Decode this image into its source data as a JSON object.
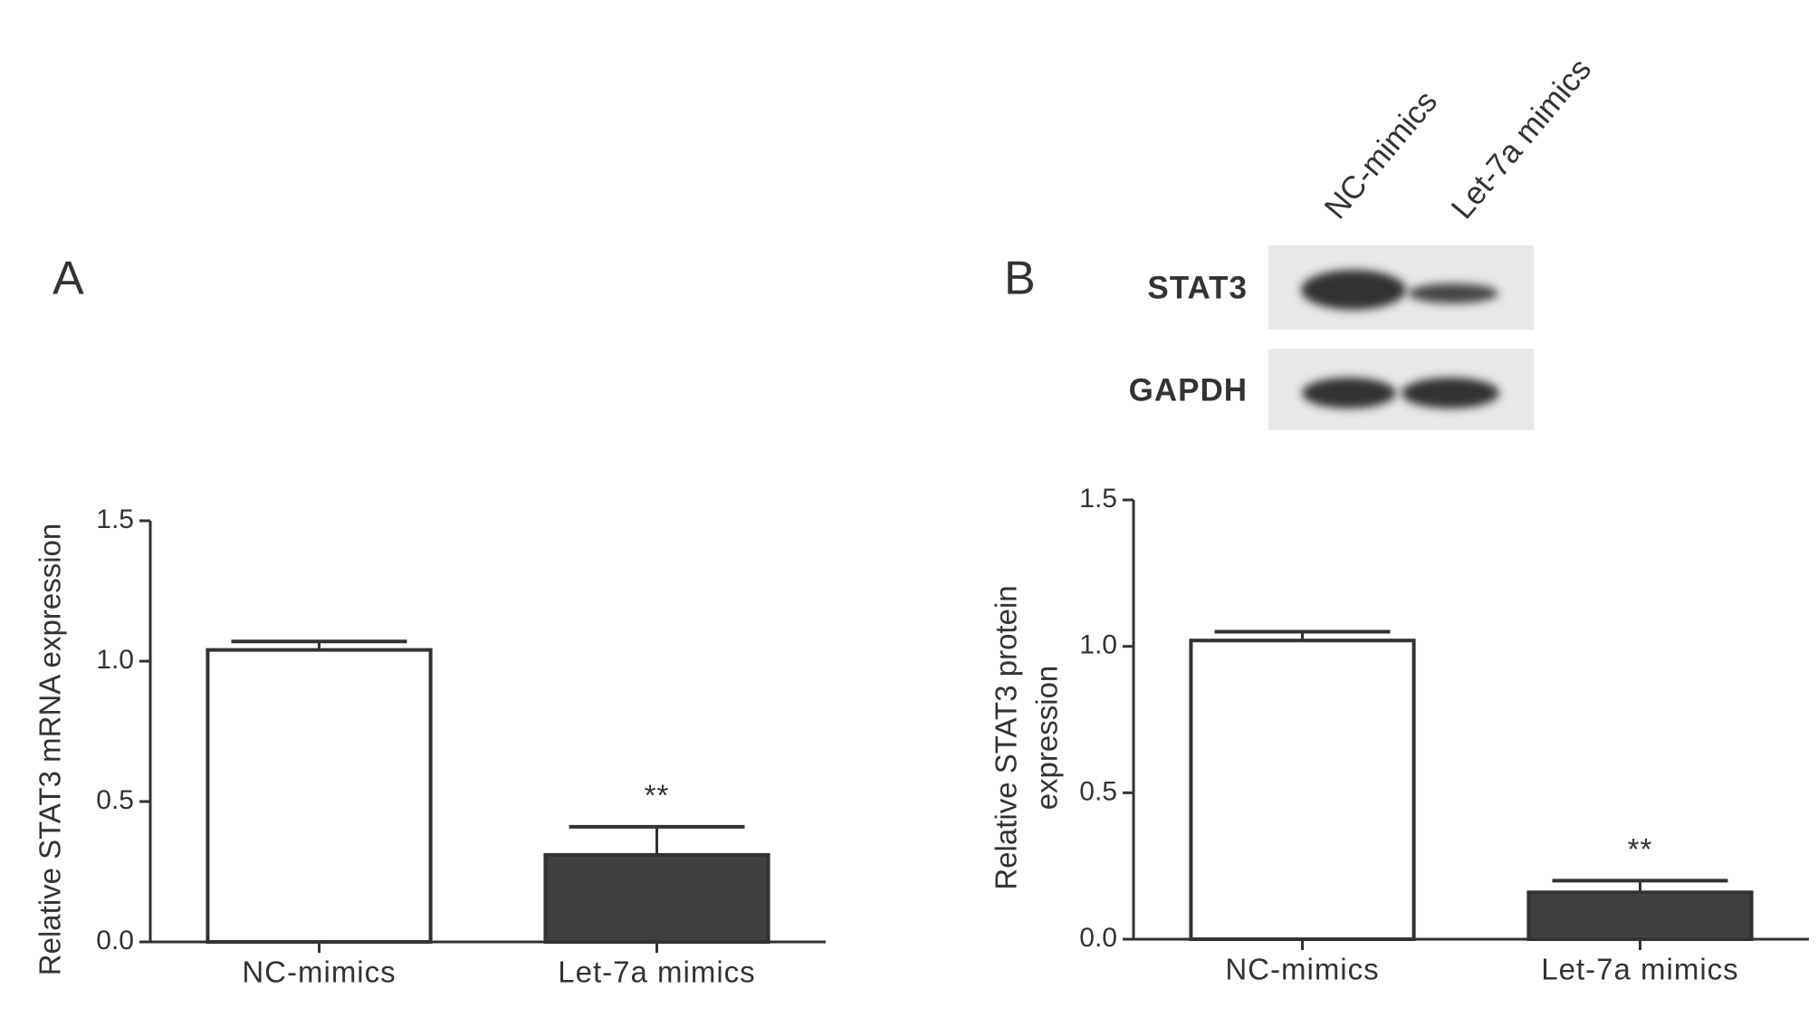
{
  "chart_data": [
    {
      "type": "bar",
      "panel": "A",
      "ylabel": [
        "Relative STAT3 mRNA expression"
      ],
      "categories": [
        "NC-mimics",
        "Let-7a mimics"
      ],
      "values": [
        1.04,
        0.31
      ],
      "errors": [
        0.03,
        0.1
      ],
      "colors": [
        "#ffffff",
        "#404040"
      ],
      "significance": [
        null,
        "**"
      ],
      "ylim": [
        0,
        1.5
      ],
      "yticks": [
        {
          "value": 0,
          "label": "0.0"
        },
        0.5,
        {
          "value": 1,
          "label": "1.0"
        },
        1.5
      ]
    },
    {
      "type": "bar",
      "panel": "B",
      "ylabel": [
        "Relative STAT3 protein",
        "expression"
      ],
      "categories": [
        "NC-mimics",
        "Let-7a mimics"
      ],
      "values": [
        1.02,
        0.16
      ],
      "errors": [
        0.03,
        0.04
      ],
      "colors": [
        "#ffffff",
        "#404040"
      ],
      "significance": [
        null,
        "**"
      ],
      "ylim": [
        0,
        1.5
      ],
      "yticks": [
        {
          "value": 0,
          "label": "0.0"
        },
        0.5,
        {
          "value": 1,
          "label": "1.0"
        },
        1.5
      ]
    }
  ],
  "blot": {
    "lanes": [
      "NC-mimics",
      "Let-7a mimics"
    ],
    "rows": [
      "STAT3",
      "GAPDH"
    ]
  }
}
